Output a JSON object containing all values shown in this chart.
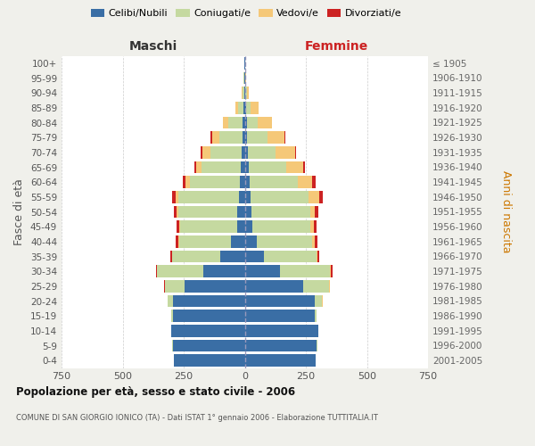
{
  "age_groups": [
    "0-4",
    "5-9",
    "10-14",
    "15-19",
    "20-24",
    "25-29",
    "30-34",
    "35-39",
    "40-44",
    "45-49",
    "50-54",
    "55-59",
    "60-64",
    "65-69",
    "70-74",
    "75-79",
    "80-84",
    "85-89",
    "90-94",
    "95-99",
    "100+"
  ],
  "birth_years": [
    "2001-2005",
    "1996-2000",
    "1991-1995",
    "1986-1990",
    "1981-1985",
    "1976-1980",
    "1971-1975",
    "1966-1970",
    "1961-1965",
    "1956-1960",
    "1951-1955",
    "1946-1950",
    "1941-1945",
    "1936-1940",
    "1931-1935",
    "1926-1930",
    "1921-1925",
    "1916-1920",
    "1911-1915",
    "1906-1910",
    "≤ 1905"
  ],
  "male_celibe": [
    290,
    295,
    300,
    295,
    295,
    245,
    170,
    100,
    55,
    32,
    30,
    25,
    20,
    15,
    12,
    10,
    8,
    5,
    3,
    2,
    2
  ],
  "male_coniugato": [
    0,
    2,
    2,
    5,
    20,
    82,
    188,
    197,
    215,
    232,
    242,
    248,
    205,
    162,
    130,
    95,
    58,
    22,
    6,
    2,
    1
  ],
  "male_vedovo": [
    0,
    0,
    0,
    0,
    1,
    1,
    2,
    2,
    3,
    5,
    6,
    9,
    16,
    22,
    32,
    30,
    22,
    10,
    4,
    1,
    0
  ],
  "male_divorziato": [
    0,
    0,
    0,
    0,
    1,
    2,
    4,
    6,
    9,
    9,
    11,
    14,
    12,
    8,
    5,
    4,
    2,
    0,
    0,
    0,
    0
  ],
  "fem_nubile": [
    290,
    295,
    300,
    285,
    285,
    240,
    145,
    80,
    48,
    32,
    26,
    24,
    19,
    16,
    12,
    10,
    8,
    5,
    3,
    2,
    2
  ],
  "fem_coniugata": [
    0,
    2,
    2,
    8,
    32,
    105,
    205,
    212,
    228,
    237,
    242,
    238,
    198,
    155,
    115,
    82,
    45,
    18,
    5,
    1,
    1
  ],
  "fem_vedova": [
    0,
    0,
    0,
    0,
    1,
    2,
    3,
    5,
    9,
    13,
    20,
    42,
    58,
    68,
    78,
    72,
    58,
    32,
    9,
    2,
    0
  ],
  "fem_divorziata": [
    0,
    0,
    0,
    0,
    1,
    2,
    5,
    9,
    11,
    11,
    13,
    16,
    14,
    9,
    5,
    3,
    2,
    1,
    0,
    0,
    0
  ],
  "color_celibe": "#3a6ea5",
  "color_coniugato": "#c5d9a0",
  "color_vedovo": "#f5c878",
  "color_divorziato": "#cc2222",
  "bg_color": "#f0f0eb",
  "plot_bg": "#ffffff",
  "legend_labels": [
    "Celibi/Nubili",
    "Coniugati/e",
    "Vedovi/e",
    "Divorziati/e"
  ],
  "title": "Popolazione per età, sesso e stato civile - 2006",
  "subtitle": "COMUNE DI SAN GIORGIO IONICO (TA) - Dati ISTAT 1° gennaio 2006 - Elaborazione TUTTITALIA.IT",
  "label_maschi": "Maschi",
  "label_femmine": "Femmine",
  "label_fasce": "Fasce di età",
  "label_anni": "Anni di nascita",
  "xlim": 750
}
